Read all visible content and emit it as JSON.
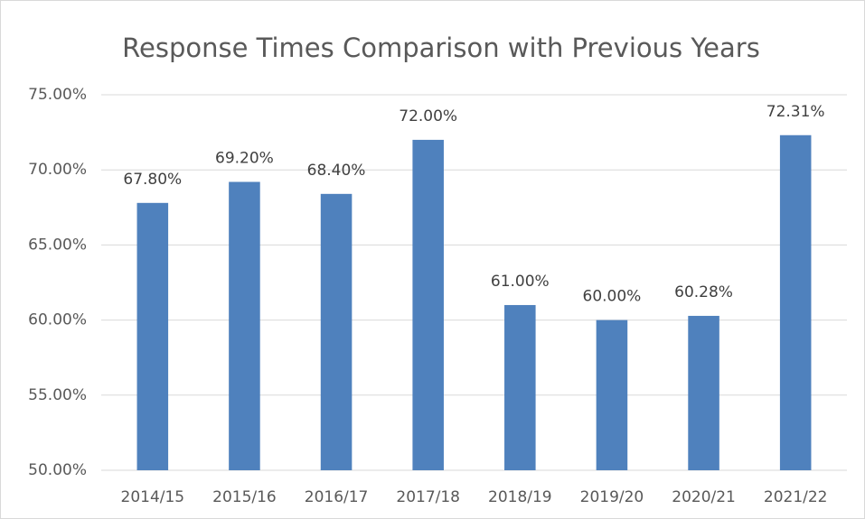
{
  "chart_data": {
    "type": "bar",
    "title": "Response Times Comparison with Previous Years",
    "categories": [
      "2014/15",
      "2015/16",
      "2016/17",
      "2017/18",
      "2018/19",
      "2019/20",
      "2020/21",
      "2021/22"
    ],
    "values": [
      67.8,
      69.2,
      68.4,
      72.0,
      61.0,
      60.0,
      60.28,
      72.31
    ],
    "value_labels": [
      "67.80%",
      "69.20%",
      "68.40%",
      "72.00%",
      "61.00%",
      "60.00%",
      "60.28%",
      "72.31%"
    ],
    "color": "#4f81bd",
    "ylim": [
      50,
      75
    ],
    "yticks": [
      {
        "value": 50,
        "label": "50.00%"
      },
      {
        "value": 55,
        "label": "55.00%"
      },
      {
        "value": 60,
        "label": "60.00%"
      },
      {
        "value": 65,
        "label": "65.00%"
      },
      {
        "value": 70,
        "label": "70.00%"
      },
      {
        "value": 75,
        "label": "75.00%"
      }
    ],
    "grid": true
  }
}
